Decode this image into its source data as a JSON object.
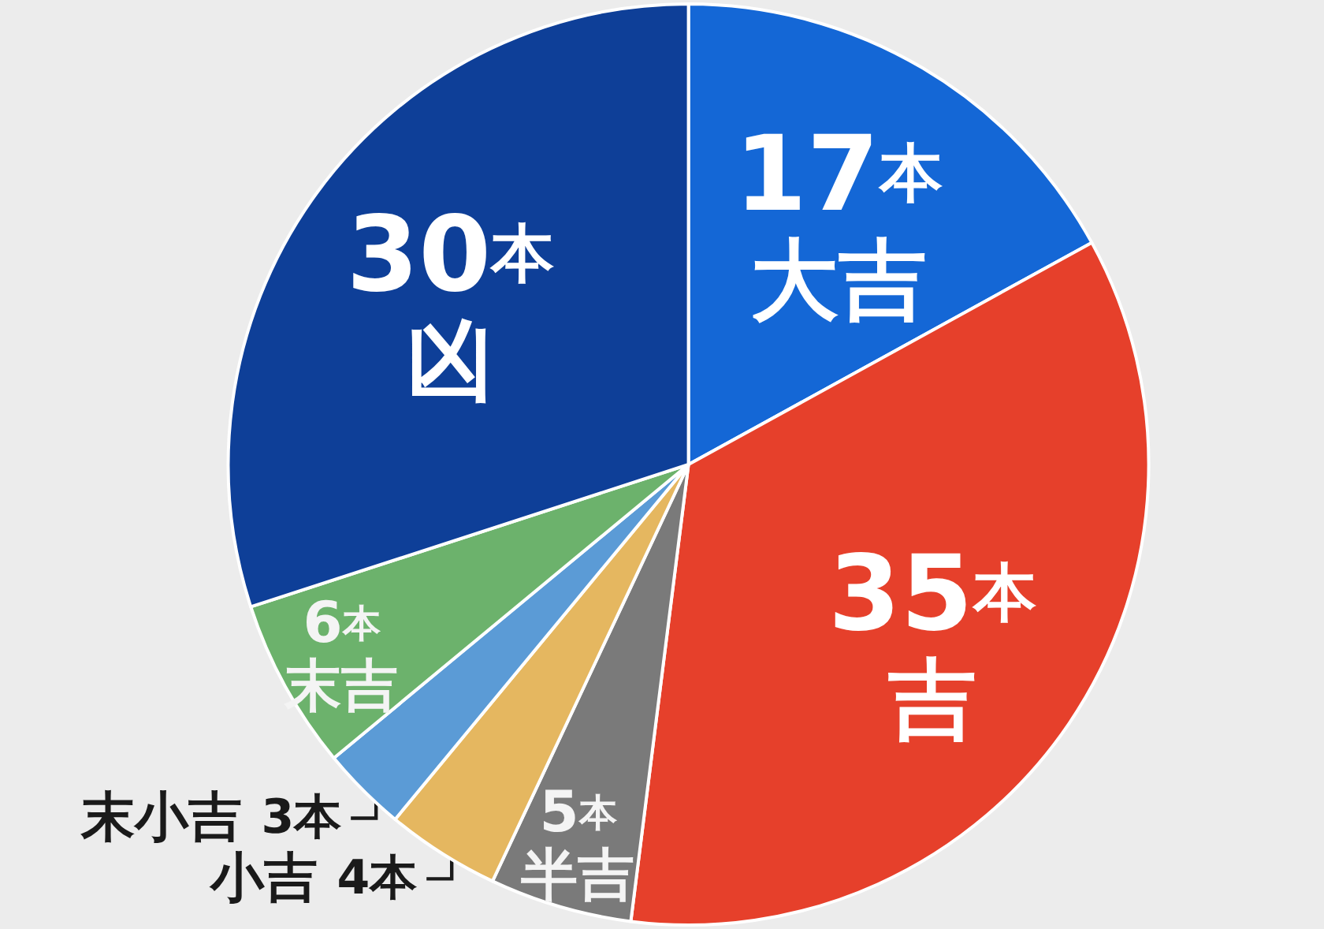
{
  "chart_data": {
    "type": "pie",
    "categories": [
      "大吉",
      "吉",
      "半吉",
      "小吉",
      "末小吉",
      "末吉",
      "凶"
    ],
    "values": [
      17,
      35,
      5,
      4,
      3,
      6,
      30
    ],
    "colors": [
      "#1467d6",
      "#e6402b",
      "#7a7a7a",
      "#e5b760",
      "#5b9bd6",
      "#6cb26c",
      "#0e3f98"
    ],
    "value_labels": [
      "17本",
      "35本",
      "5本",
      "4本",
      "3本",
      "6本",
      "30本"
    ]
  }
}
